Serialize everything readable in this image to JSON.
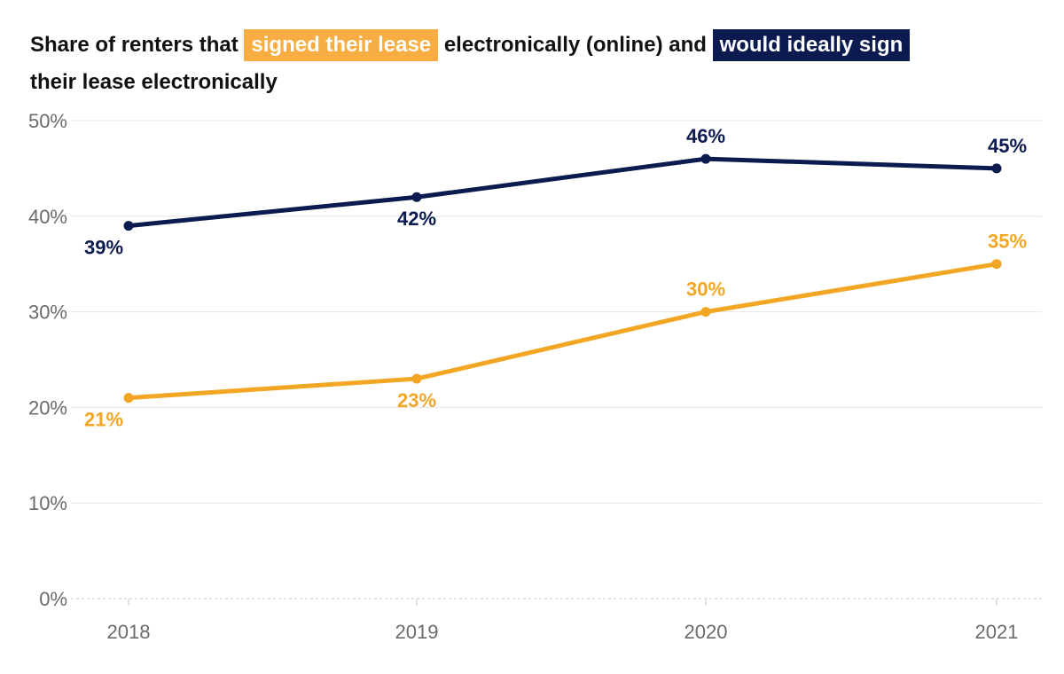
{
  "title": {
    "part1": "Share of renters that",
    "highlight1": "signed their lease",
    "part2": "electronically (online) and",
    "highlight2": "would ideally sign",
    "part3": "their lease electronically"
  },
  "colors": {
    "signed": "#f2a623",
    "ideal": "#0b1a4f",
    "grid": "#e6e6e6",
    "axis": "#c8c8c8"
  },
  "chart_data": {
    "type": "line",
    "title": "Share of renters that signed their lease electronically (online) and would ideally sign their lease electronically",
    "xlabel": "",
    "ylabel": "",
    "x": [
      "2018",
      "2019",
      "2020",
      "2021"
    ],
    "yticks": [
      "0%",
      "10%",
      "20%",
      "30%",
      "40%",
      "50%"
    ],
    "ylim": [
      0,
      50
    ],
    "grid": true,
    "legend": "inline in title",
    "series": [
      {
        "key": "ideal",
        "name": "would ideally sign",
        "values": [
          39,
          42,
          46,
          45
        ],
        "labels": [
          "39%",
          "42%",
          "46%",
          "45%"
        ]
      },
      {
        "key": "signed",
        "name": "signed their lease",
        "values": [
          21,
          23,
          30,
          35
        ],
        "labels": [
          "21%",
          "23%",
          "30%",
          "35%"
        ]
      }
    ]
  }
}
